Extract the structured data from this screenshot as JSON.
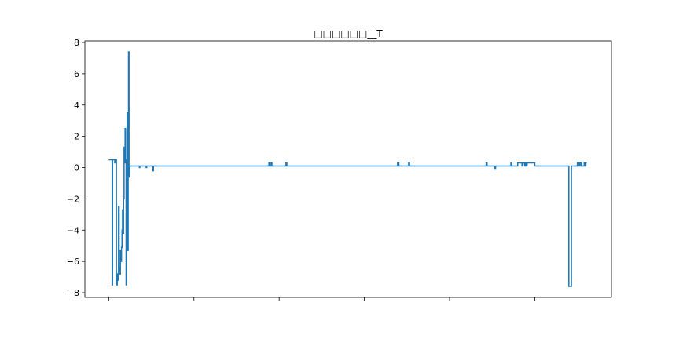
{
  "chart_data": {
    "type": "line",
    "title": "□□□□□□__T",
    "xlabel": "",
    "ylabel": "",
    "xlim": [
      -280,
      5900
    ],
    "ylim": [
      -8.3,
      8.1
    ],
    "yticks": [
      8,
      6,
      4,
      2,
      0,
      -2,
      -4,
      -6,
      -8
    ],
    "xticks": [
      0,
      1000,
      2000,
      3000,
      4000,
      5000
    ],
    "xtick_labels_visible": false,
    "grid": false,
    "series": [
      {
        "color": "#1f77b4",
        "points": [
          [
            0,
            0.5
          ],
          [
            40,
            0.5
          ],
          [
            40,
            -7.5
          ],
          [
            45,
            -7.5
          ],
          [
            45,
            0.5
          ],
          [
            70,
            0.5
          ],
          [
            70,
            0.3
          ],
          [
            80,
            0.3
          ],
          [
            80,
            0.5
          ],
          [
            90,
            0.5
          ],
          [
            90,
            -7.5
          ],
          [
            100,
            -7.5
          ],
          [
            100,
            -6.8
          ],
          [
            110,
            -6.8
          ],
          [
            110,
            -7.2
          ],
          [
            115,
            -7.2
          ],
          [
            115,
            -2.5
          ],
          [
            122,
            -2.5
          ],
          [
            122,
            -6.4
          ],
          [
            130,
            -6.4
          ],
          [
            130,
            -6.8
          ],
          [
            137,
            -6.8
          ],
          [
            137,
            -5.3
          ],
          [
            144,
            -5.3
          ],
          [
            144,
            -6.0
          ],
          [
            150,
            -6.0
          ],
          [
            150,
            -5.1
          ],
          [
            156,
            -5.1
          ],
          [
            156,
            -4.0
          ],
          [
            162,
            -4.0
          ],
          [
            162,
            -2.7
          ],
          [
            168,
            -2.7
          ],
          [
            168,
            -4.2
          ],
          [
            174,
            -4.2
          ],
          [
            174,
            -2.0
          ],
          [
            180,
            -2.0
          ],
          [
            180,
            1.3
          ],
          [
            186,
            1.3
          ],
          [
            186,
            0.3
          ],
          [
            192,
            0.3
          ],
          [
            192,
            2.5
          ],
          [
            198,
            2.5
          ],
          [
            198,
            0.5
          ],
          [
            204,
            0.5
          ],
          [
            204,
            -7.5
          ],
          [
            210,
            -7.5
          ],
          [
            210,
            -3.8
          ],
          [
            216,
            -3.8
          ],
          [
            216,
            3.5
          ],
          [
            222,
            3.5
          ],
          [
            222,
            -5.3
          ],
          [
            228,
            -5.3
          ],
          [
            228,
            1.0
          ],
          [
            232,
            1.0
          ],
          [
            232,
            7.4
          ],
          [
            238,
            7.4
          ],
          [
            238,
            -0.6
          ],
          [
            244,
            -0.6
          ],
          [
            244,
            0.1
          ],
          [
            360,
            0.1
          ],
          [
            360,
            0.0
          ],
          [
            365,
            0.0
          ],
          [
            365,
            0.1
          ],
          [
            440,
            0.1
          ],
          [
            440,
            0.0
          ],
          [
            445,
            0.0
          ],
          [
            445,
            0.1
          ],
          [
            520,
            0.1
          ],
          [
            520,
            -0.2
          ],
          [
            525,
            -0.2
          ],
          [
            525,
            0.1
          ],
          [
            1880,
            0.1
          ],
          [
            1880,
            0.3
          ],
          [
            1890,
            0.3
          ],
          [
            1890,
            0.1
          ],
          [
            1905,
            0.1
          ],
          [
            1905,
            0.3
          ],
          [
            1915,
            0.3
          ],
          [
            1915,
            0.1
          ],
          [
            2080,
            0.1
          ],
          [
            2080,
            0.3
          ],
          [
            2090,
            0.3
          ],
          [
            2090,
            0.1
          ],
          [
            3390,
            0.1
          ],
          [
            3390,
            0.3
          ],
          [
            3405,
            0.3
          ],
          [
            3405,
            0.1
          ],
          [
            3520,
            0.1
          ],
          [
            3520,
            0.3
          ],
          [
            3530,
            0.3
          ],
          [
            3530,
            0.1
          ],
          [
            4430,
            0.1
          ],
          [
            4430,
            0.3
          ],
          [
            4440,
            0.3
          ],
          [
            4440,
            0.1
          ],
          [
            4530,
            0.1
          ],
          [
            4530,
            -0.1
          ],
          [
            4540,
            -0.1
          ],
          [
            4540,
            0.1
          ],
          [
            4720,
            0.1
          ],
          [
            4720,
            0.3
          ],
          [
            4730,
            0.3
          ],
          [
            4730,
            0.1
          ],
          [
            4800,
            0.1
          ],
          [
            4800,
            0.3
          ],
          [
            4850,
            0.3
          ],
          [
            4850,
            0.1
          ],
          [
            4860,
            0.1
          ],
          [
            4860,
            0.3
          ],
          [
            4880,
            0.3
          ],
          [
            4880,
            0.1
          ],
          [
            4890,
            0.1
          ],
          [
            4890,
            0.3
          ],
          [
            4900,
            0.3
          ],
          [
            4900,
            0.1
          ],
          [
            4910,
            0.1
          ],
          [
            4910,
            0.3
          ],
          [
            5000,
            0.3
          ],
          [
            5000,
            0.1
          ],
          [
            5400,
            0.1
          ],
          [
            5400,
            -7.6
          ],
          [
            5430,
            -7.6
          ],
          [
            5430,
            0.1
          ],
          [
            5500,
            0.1
          ],
          [
            5500,
            0.3
          ],
          [
            5520,
            0.3
          ],
          [
            5520,
            0.1
          ],
          [
            5530,
            0.1
          ],
          [
            5530,
            0.3
          ],
          [
            5545,
            0.3
          ],
          [
            5545,
            0.1
          ],
          [
            5580,
            0.1
          ],
          [
            5580,
            0.3
          ],
          [
            5590,
            0.3
          ],
          [
            5590,
            0.1
          ],
          [
            5600,
            0.1
          ],
          [
            5600,
            0.3
          ],
          [
            5610,
            0.3
          ]
        ]
      }
    ]
  }
}
